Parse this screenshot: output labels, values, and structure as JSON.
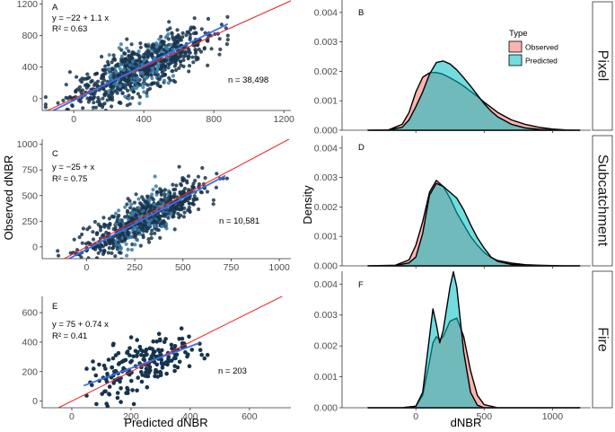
{
  "chart_data": [
    {
      "type": "scatter",
      "panel": "A",
      "equation": "y = −22 + 1.1 x",
      "r2": "R² = 0.63",
      "n_label": "n = 38,498",
      "xlim": [
        -180,
        1240
      ],
      "ylim": [
        -150,
        1250
      ],
      "xticks": [
        0,
        400,
        800,
        1200
      ],
      "yticks": [
        0,
        400,
        800,
        1200
      ],
      "xtick_labels": [
        "0",
        "400",
        "800",
        "1200"
      ],
      "ytick_labels": [
        "0",
        "400",
        "800",
        "1200"
      ],
      "fit": {
        "intercept": -22,
        "slope": 1.1,
        "x_range": [
          -120,
          880
        ]
      },
      "cloud": {
        "n": 900,
        "x_center": 380,
        "x_sd": 190,
        "x_min": -160,
        "x_max": 880,
        "y_intercept": 20,
        "y_slope": 0.95,
        "y_sd": 150
      }
    },
    {
      "type": "scatter",
      "panel": "C",
      "equation": "y = −25 + x",
      "r2": "R² = 0.75",
      "n_label": "n = 10,581",
      "xlim": [
        -230,
        1060
      ],
      "ylim": [
        -115,
        1050
      ],
      "xticks": [
        0,
        250,
        500,
        750,
        1000
      ],
      "yticks": [
        0,
        250,
        500,
        750,
        1000
      ],
      "xtick_labels": [
        "0",
        "250",
        "500",
        "750",
        "1000"
      ],
      "ytick_labels": [
        "0",
        "250",
        "500",
        "750",
        "1000"
      ],
      "fit": {
        "intercept": -25,
        "slope": 1.0,
        "x_range": [
          -130,
          720
        ]
      },
      "cloud": {
        "n": 750,
        "x_center": 300,
        "x_sd": 150,
        "x_min": -150,
        "x_max": 740,
        "y_intercept": -20,
        "y_slope": 0.98,
        "y_sd": 100
      }
    },
    {
      "type": "scatter",
      "panel": "E",
      "equation": "y = 75 + 0.74 x",
      "r2": "R² = 0.41",
      "n_label": "n = 203",
      "xlim": [
        -100,
        740
      ],
      "ylim": [
        -45,
        710
      ],
      "xticks": [
        0,
        200,
        400,
        600
      ],
      "yticks": [
        0,
        200,
        400,
        600
      ],
      "xtick_labels": [
        "0",
        "200",
        "400",
        "600"
      ],
      "ytick_labels": [
        "0",
        "200",
        "400",
        "600"
      ],
      "fit": {
        "intercept": 75,
        "slope": 0.74,
        "x_range": [
          40,
          430
        ]
      },
      "cloud": {
        "n": 203,
        "x_center": 240,
        "x_sd": 90,
        "x_min": 50,
        "x_max": 460,
        "y_intercept": 75,
        "y_slope": 0.74,
        "y_sd": 85
      }
    },
    {
      "type": "area",
      "panel": "B",
      "facet": "Pixel",
      "xlim": [
        -540,
        1280
      ],
      "ylim": [
        0,
        0.0043
      ],
      "xticks": [
        0,
        500,
        1000
      ],
      "yticks": [
        0.0,
        0.001,
        0.002,
        0.003,
        0.004
      ],
      "ytick_labels": [
        "0.000",
        "0.001",
        "0.002",
        "0.003",
        "0.004"
      ],
      "series": [
        {
          "name": "Observed",
          "x": [
            -350,
            -200,
            -100,
            -50,
            0,
            50,
            100,
            150,
            200,
            250,
            300,
            350,
            400,
            450,
            500,
            550,
            600,
            700,
            800,
            900,
            1000,
            1100,
            1200
          ],
          "y": [
            0,
            1e-05,
            0.0002,
            0.0006,
            0.0013,
            0.0018,
            0.00195,
            0.00196,
            0.0019,
            0.00178,
            0.00165,
            0.0015,
            0.00132,
            0.00115,
            0.00095,
            0.00078,
            0.0006,
            0.00035,
            0.0002,
            0.0001,
            4e-05,
            1e-05,
            0
          ]
        },
        {
          "name": "Predicted",
          "x": [
            -350,
            -200,
            -100,
            -50,
            0,
            50,
            100,
            150,
            200,
            250,
            300,
            350,
            400,
            450,
            500,
            550,
            600,
            700,
            800,
            900,
            1000,
            1100,
            1200
          ],
          "y": [
            0,
            1e-05,
            0.0001,
            0.00035,
            0.0008,
            0.0013,
            0.0019,
            0.0023,
            0.00235,
            0.00225,
            0.00205,
            0.00178,
            0.0015,
            0.0012,
            0.0009,
            0.00065,
            0.00045,
            0.0002,
            8e-05,
            3e-05,
            1e-05,
            0,
            0
          ]
        }
      ]
    },
    {
      "type": "area",
      "panel": "D",
      "facet": "Subcatchment",
      "xlim": [
        -540,
        1280
      ],
      "ylim": [
        0,
        0.0043
      ],
      "xticks": [
        0,
        500,
        1000
      ],
      "yticks": [
        0.0,
        0.001,
        0.002,
        0.003,
        0.004
      ],
      "ytick_labels": [
        "0.000",
        "0.001",
        "0.002",
        "0.003",
        "0.004"
      ],
      "series": [
        {
          "name": "Observed",
          "x": [
            -350,
            -150,
            -50,
            0,
            50,
            100,
            150,
            200,
            250,
            300,
            350,
            400,
            450,
            500,
            550,
            600,
            700,
            800,
            900,
            1000,
            1100,
            1200
          ],
          "y": [
            0,
            2e-05,
            0.0002,
            0.0007,
            0.0015,
            0.0025,
            0.0029,
            0.0027,
            0.0023,
            0.0018,
            0.0014,
            0.001,
            0.0007,
            0.00045,
            0.00028,
            0.00018,
            9e-05,
            4e-05,
            2e-05,
            1e-05,
            0,
            0
          ]
        },
        {
          "name": "Predicted",
          "x": [
            -350,
            -150,
            -50,
            0,
            50,
            100,
            150,
            200,
            250,
            300,
            350,
            400,
            450,
            500,
            550,
            600,
            700,
            800,
            900,
            1000,
            1100,
            1200
          ],
          "y": [
            0,
            1e-05,
            0.0001,
            0.0003,
            0.0011,
            0.0024,
            0.0028,
            0.0027,
            0.0025,
            0.0023,
            0.0019,
            0.0014,
            0.00095,
            0.0006,
            0.0003,
            0.00015,
            5e-05,
            1e-05,
            0,
            0,
            0,
            0
          ]
        }
      ]
    },
    {
      "type": "area",
      "panel": "F",
      "facet": "Fire",
      "xlim": [
        -540,
        1280
      ],
      "ylim": [
        0,
        0.0043
      ],
      "xticks": [
        0,
        500,
        1000
      ],
      "yticks": [
        0.0,
        0.001,
        0.002,
        0.003,
        0.004
      ],
      "ytick_labels": [
        "0.000",
        "0.001",
        "0.002",
        "0.003",
        "0.004"
      ],
      "series": [
        {
          "name": "Observed",
          "x": [
            -350,
            -100,
            0,
            50,
            100,
            125,
            150,
            175,
            200,
            250,
            300,
            350,
            400,
            450,
            500,
            600,
            800,
            1200
          ],
          "y": [
            0,
            0,
            5e-05,
            0.0004,
            0.0015,
            0.0021,
            0.0023,
            0.0022,
            0.0023,
            0.0028,
            0.0029,
            0.0023,
            0.0012,
            0.0004,
            0.0001,
            0,
            0,
            0
          ]
        },
        {
          "name": "Predicted",
          "x": [
            -350,
            -100,
            0,
            50,
            100,
            125,
            150,
            175,
            200,
            250,
            275,
            300,
            350,
            400,
            450,
            500,
            600,
            800,
            1200
          ],
          "y": [
            0,
            0,
            5e-05,
            0.0005,
            0.0023,
            0.0032,
            0.0027,
            0.0021,
            0.0025,
            0.0039,
            0.0044,
            0.0039,
            0.0018,
            0.0005,
            8e-05,
            0,
            0,
            0,
            0
          ]
        }
      ]
    }
  ],
  "axes": {
    "x_left_title": "Predicted dNBR",
    "y_left_title": "Observed dNBR",
    "x_right_title": "dNBR",
    "y_right_title": "Density"
  },
  "legend": {
    "title": "Type",
    "items": [
      {
        "label": "Observed",
        "color": "#f8766d"
      },
      {
        "label": "Predicted",
        "color": "#00bfc4"
      }
    ]
  },
  "colors": {
    "point": "#17344e",
    "point_light": "#3a7ca5",
    "fit_line": "#3d71e8",
    "identity_line": "#ee2a2a",
    "observed_fill": "#f8766d",
    "predicted_fill": "#00bfc4"
  }
}
